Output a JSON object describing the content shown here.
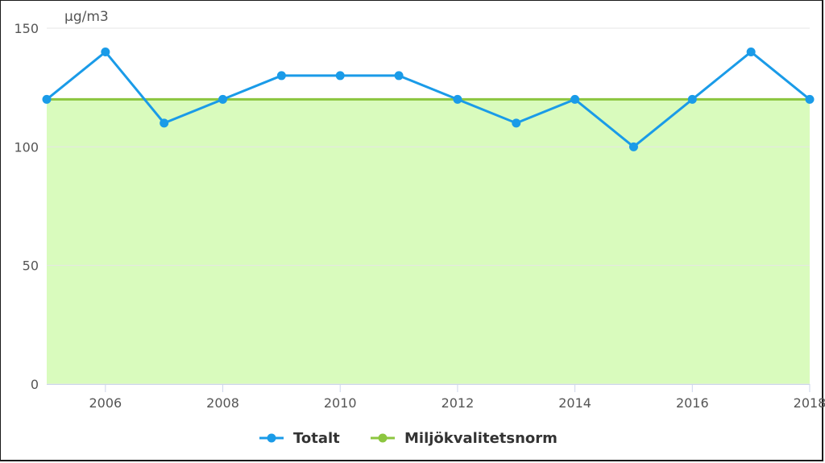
{
  "chart_data": {
    "type": "line",
    "ylabel": "µg/m3",
    "ylim": [
      0,
      150
    ],
    "xlim": [
      2005,
      2018
    ],
    "y_ticks": [
      "0",
      "50",
      "100",
      "150"
    ],
    "x_ticks": [
      "2006",
      "2008",
      "2010",
      "2012",
      "2014",
      "2016",
      "2018"
    ],
    "x": [
      2005,
      2006,
      2007,
      2008,
      2009,
      2010,
      2011,
      2012,
      2013,
      2014,
      2015,
      2016,
      2017,
      2018
    ],
    "series": [
      {
        "name": "Totalt",
        "color": "#1a9be8",
        "values": [
          120,
          140,
          110,
          120,
          130,
          130,
          130,
          120,
          110,
          120,
          100,
          120,
          140,
          120
        ]
      },
      {
        "name": "Miljökvalitetsnorm",
        "color": "#8cc63f",
        "area_color": "#d9fbbd",
        "values": [
          120,
          120,
          120,
          120,
          120,
          120,
          120,
          120,
          120,
          120,
          120,
          120,
          120,
          120
        ]
      }
    ],
    "grid": true,
    "legend": "bottom-center"
  }
}
